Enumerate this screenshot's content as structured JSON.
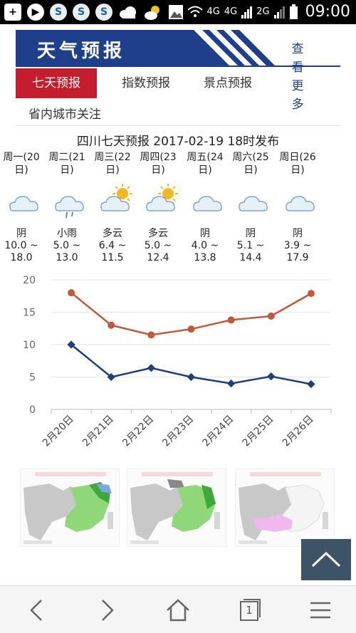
{
  "status_bar": {
    "time": "09:00",
    "network_4g_a": "4G",
    "network_4g_b": "4G",
    "network_2g": "2G",
    "icons": [
      "plus-icon",
      "play-icon",
      "s-app-icon",
      "s-app-icon",
      "s-app-icon",
      "cloud-icon",
      "weather-icon",
      "image-icon",
      "wifi-icon",
      "signal-icon",
      "battery-icon"
    ]
  },
  "header": {
    "title": "天气预报",
    "more_chars": [
      "查",
      "看",
      "更",
      "多"
    ]
  },
  "tabs": [
    {
      "label": "七天预报"
    },
    {
      "label": "指数预报"
    },
    {
      "label": "景点预报"
    },
    {
      "label": "省内城市关注"
    }
  ],
  "forecast": {
    "title": "四川七天预报 2017-02-19 18时发布",
    "days": [
      {
        "day": "周一(20日)",
        "weather": "阴",
        "temp": "10.0 ~ 18.0",
        "icon": "cloud-icon"
      },
      {
        "day": "周二(21日)",
        "weather": "小雨",
        "temp": "5.0 ~ 13.0",
        "icon": "rain-icon"
      },
      {
        "day": "周三(22日)",
        "weather": "多云",
        "temp": "6.4 ~ 11.5",
        "icon": "partly-cloudy-icon"
      },
      {
        "day": "周四(23日)",
        "weather": "多云",
        "temp": "5.0 ~ 12.4",
        "icon": "partly-cloudy-icon"
      },
      {
        "day": "周五(24日)",
        "weather": "阴",
        "temp": "4.0 ~ 13.8",
        "icon": "cloud-icon"
      },
      {
        "day": "周六(25日)",
        "weather": "阴",
        "temp": "5.1 ~ 14.4",
        "icon": "cloud-icon"
      },
      {
        "day": "周日(26日)",
        "weather": "阴",
        "temp": "3.9 ~ 17.9",
        "icon": "cloud-icon"
      }
    ]
  },
  "chart_data": {
    "type": "line",
    "categories": [
      "2月20日",
      "2月21日",
      "2月22日",
      "2月23日",
      "2月24日",
      "2月25日",
      "2月26日"
    ],
    "series": [
      {
        "values": [
          18.0,
          13.0,
          11.5,
          12.4,
          13.8,
          14.4,
          17.9
        ],
        "color": "#c0583c"
      },
      {
        "values": [
          10.0,
          5.0,
          6.4,
          5.0,
          4.0,
          5.1,
          3.9
        ],
        "color": "#1f3f7a"
      }
    ],
    "yticks": [
      "0",
      "5",
      "10",
      "15",
      "20"
    ],
    "ylim": [
      0,
      20
    ],
    "grid": true
  },
  "colors": {
    "banner": "#1f3f8a",
    "tab_active": "#c41e2e",
    "to_top": "#3d5468"
  },
  "bottom_bar": {
    "tab_count": "1",
    "icons": [
      "back-arrow-icon",
      "forward-arrow-icon",
      "home-icon",
      "tabs-icon",
      "menu-icon"
    ]
  }
}
